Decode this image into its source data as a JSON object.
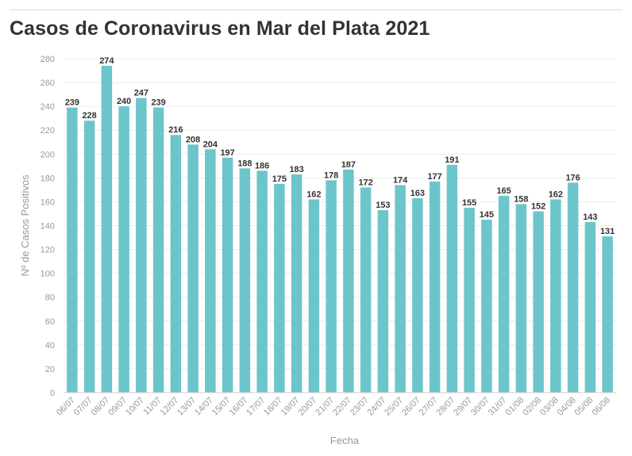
{
  "chart_data": {
    "type": "bar",
    "title": "Casos de Coronavirus en Mar del Plata 2021",
    "xlabel": "Fecha",
    "ylabel": "Nº de Casos Positivos",
    "ylim": [
      0,
      280
    ],
    "yticks": [
      0,
      20,
      40,
      60,
      80,
      100,
      120,
      140,
      160,
      180,
      200,
      220,
      240,
      260,
      280
    ],
    "grid": true,
    "bar_color": "#6cc5cb",
    "categories": [
      "06/07",
      "07/07",
      "08/07",
      "09/07",
      "10/07",
      "11/07",
      "12/07",
      "13/07",
      "14/07",
      "15/07",
      "16/07",
      "17/07",
      "18/07",
      "19/07",
      "20/07",
      "21/07",
      "22/07",
      "23/07",
      "24/07",
      "25/07",
      "26/07",
      "27/07",
      "28/07",
      "29/07",
      "30/07",
      "31/07",
      "01/08",
      "02/08",
      "03/08",
      "04/08",
      "05/08",
      "06/08"
    ],
    "values": [
      239,
      228,
      274,
      240,
      247,
      239,
      216,
      208,
      204,
      197,
      188,
      186,
      175,
      183,
      162,
      178,
      187,
      172,
      153,
      174,
      163,
      177,
      191,
      155,
      145,
      165,
      158,
      152,
      162,
      176,
      143,
      131
    ]
  }
}
